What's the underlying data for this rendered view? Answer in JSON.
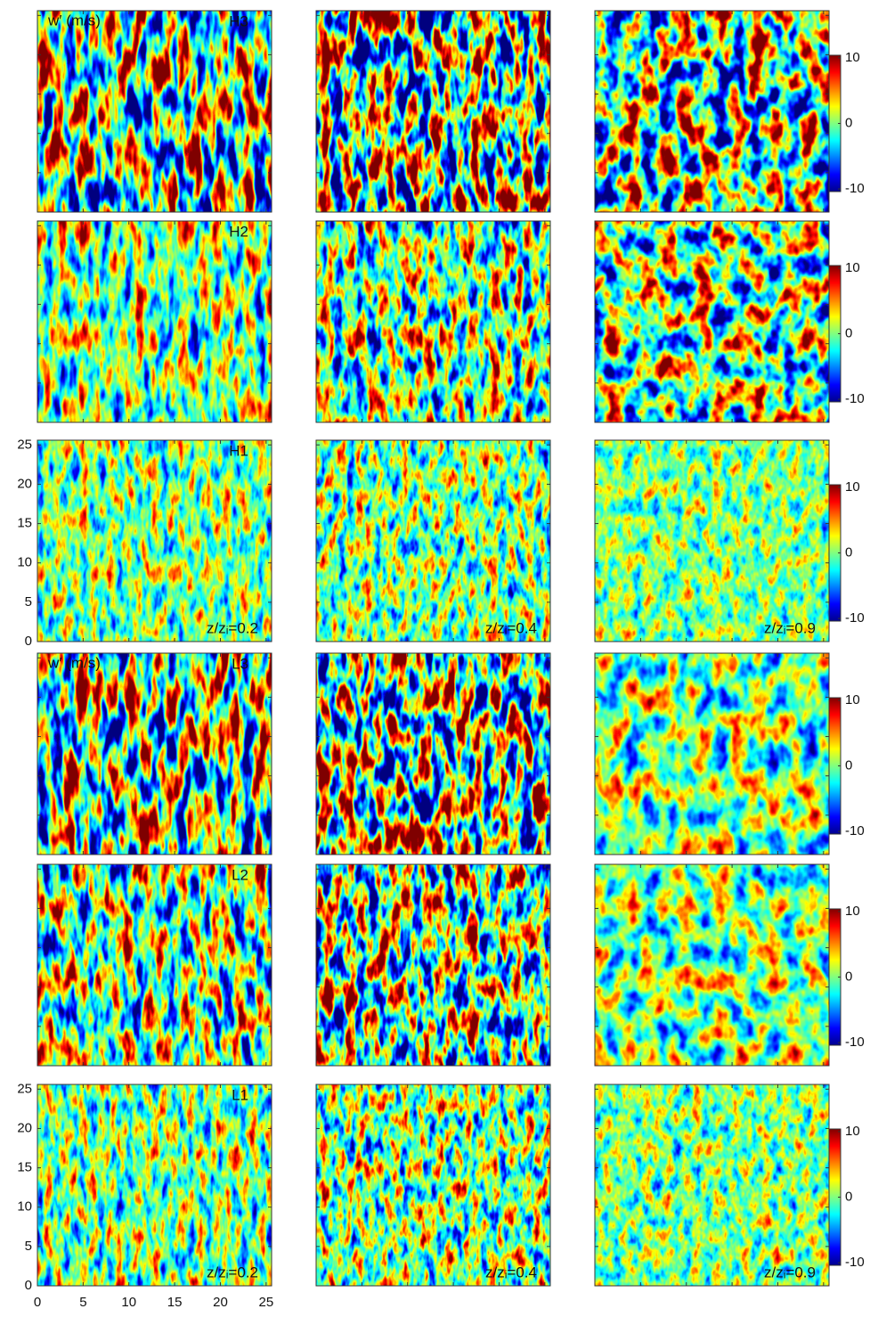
{
  "chart_data": [
    {
      "type": "field",
      "title": "w′ (m/s)",
      "annotation": "H3",
      "xlim": [
        0,
        25.6
      ],
      "ylim": [
        0,
        25.6
      ],
      "xticks": [
        0,
        5,
        10,
        15,
        20,
        25
      ],
      "yticks": [
        0,
        5,
        10,
        15,
        20,
        25
      ],
      "xtick_labels": false,
      "ytick_labels": false
    },
    {
      "type": "field",
      "xlim": [
        0,
        25.6
      ],
      "ylim": [
        0,
        25.6
      ],
      "xticks": [
        0,
        5,
        10,
        15,
        20,
        25
      ],
      "yticks": [
        0,
        5,
        10,
        15,
        20,
        25
      ],
      "xtick_labels": false,
      "ytick_labels": false
    },
    {
      "type": "field",
      "xlim": [
        0,
        25.6
      ],
      "ylim": [
        0,
        25.6
      ],
      "xticks": [
        0,
        5,
        10,
        15,
        20,
        25
      ],
      "yticks": [
        0,
        5,
        10,
        15,
        20,
        25
      ],
      "xtick_labels": false,
      "ytick_labels": false,
      "colorbar": {
        "lim": [
          -10.4,
          10.4
        ],
        "ticks": [
          -10,
          0,
          10
        ]
      }
    },
    {
      "type": "field",
      "annotation": "H2",
      "xlim": [
        0,
        25.6
      ],
      "ylim": [
        0,
        25.6
      ],
      "xticks": [
        0,
        5,
        10,
        15,
        20,
        25
      ],
      "yticks": [
        0,
        5,
        10,
        15,
        20,
        25
      ],
      "xtick_labels": false,
      "ytick_labels": false
    },
    {
      "type": "field",
      "xlim": [
        0,
        25.6
      ],
      "ylim": [
        0,
        25.6
      ],
      "xticks": [
        0,
        5,
        10,
        15,
        20,
        25
      ],
      "yticks": [
        0,
        5,
        10,
        15,
        20,
        25
      ],
      "xtick_labels": false,
      "ytick_labels": false
    },
    {
      "type": "field",
      "xlim": [
        0,
        25.6
      ],
      "ylim": [
        0,
        25.6
      ],
      "xticks": [
        0,
        5,
        10,
        15,
        20,
        25
      ],
      "yticks": [
        0,
        5,
        10,
        15,
        20,
        25
      ],
      "xtick_labels": false,
      "ytick_labels": false,
      "colorbar": {
        "lim": [
          -10.4,
          10.4
        ],
        "ticks": [
          -10,
          0,
          10
        ]
      }
    },
    {
      "type": "field",
      "annotation": "H1",
      "height": "z/zᵢ=0.2",
      "xlim": [
        0,
        25.6
      ],
      "ylim": [
        0,
        25.6
      ],
      "xticks": [
        0,
        5,
        10,
        15,
        20,
        25
      ],
      "yticks": [
        0,
        5,
        10,
        15,
        20,
        25
      ],
      "xtick_labels": false,
      "ytick_labels": true
    },
    {
      "type": "field",
      "height": "z/zᵢ=0.4",
      "xlim": [
        0,
        25.6
      ],
      "ylim": [
        0,
        25.6
      ],
      "xticks": [
        0,
        5,
        10,
        15,
        20,
        25
      ],
      "yticks": [
        0,
        5,
        10,
        15,
        20,
        25
      ],
      "xtick_labels": false,
      "ytick_labels": false
    },
    {
      "type": "field",
      "height": "z/zᵢ=0.9",
      "xlim": [
        0,
        25.6
      ],
      "ylim": [
        0,
        25.6
      ],
      "xticks": [
        0,
        5,
        10,
        15,
        20,
        25
      ],
      "yticks": [
        0,
        5,
        10,
        15,
        20,
        25
      ],
      "xtick_labels": false,
      "ytick_labels": false,
      "colorbar": {
        "lim": [
          -10.4,
          10.4
        ],
        "ticks": [
          -10,
          0,
          10
        ]
      }
    },
    {
      "type": "field",
      "title": "w′ (m/s)",
      "annotation": "L3",
      "xlim": [
        0,
        25.6
      ],
      "ylim": [
        0,
        25.6
      ],
      "xticks": [
        0,
        5,
        10,
        15,
        20,
        25
      ],
      "yticks": [
        0,
        5,
        10,
        15,
        20,
        25
      ],
      "xtick_labels": false,
      "ytick_labels": false
    },
    {
      "type": "field",
      "xlim": [
        0,
        25.6
      ],
      "ylim": [
        0,
        25.6
      ],
      "xticks": [
        0,
        5,
        10,
        15,
        20,
        25
      ],
      "yticks": [
        0,
        5,
        10,
        15,
        20,
        25
      ],
      "xtick_labels": false,
      "ytick_labels": false
    },
    {
      "type": "field",
      "xlim": [
        0,
        25.6
      ],
      "ylim": [
        0,
        25.6
      ],
      "xticks": [
        0,
        5,
        10,
        15,
        20,
        25
      ],
      "yticks": [
        0,
        5,
        10,
        15,
        20,
        25
      ],
      "xtick_labels": false,
      "ytick_labels": false,
      "colorbar": {
        "lim": [
          -10.4,
          10.4
        ],
        "ticks": [
          -10,
          0,
          10
        ]
      }
    },
    {
      "type": "field",
      "annotation": "L2",
      "xlim": [
        0,
        25.6
      ],
      "ylim": [
        0,
        25.6
      ],
      "xticks": [
        0,
        5,
        10,
        15,
        20,
        25
      ],
      "yticks": [
        0,
        5,
        10,
        15,
        20,
        25
      ],
      "xtick_labels": false,
      "ytick_labels": false
    },
    {
      "type": "field",
      "xlim": [
        0,
        25.6
      ],
      "ylim": [
        0,
        25.6
      ],
      "xticks": [
        0,
        5,
        10,
        15,
        20,
        25
      ],
      "yticks": [
        0,
        5,
        10,
        15,
        20,
        25
      ],
      "xtick_labels": false,
      "ytick_labels": false
    },
    {
      "type": "field",
      "xlim": [
        0,
        25.6
      ],
      "ylim": [
        0,
        25.6
      ],
      "xticks": [
        0,
        5,
        10,
        15,
        20,
        25
      ],
      "yticks": [
        0,
        5,
        10,
        15,
        20,
        25
      ],
      "xtick_labels": false,
      "ytick_labels": false,
      "colorbar": {
        "lim": [
          -10.4,
          10.4
        ],
        "ticks": [
          -10,
          0,
          10
        ]
      }
    },
    {
      "type": "field",
      "annotation": "L1",
      "height": "z/zᵢ=0.2",
      "xlim": [
        0,
        25.6
      ],
      "ylim": [
        0,
        25.6
      ],
      "xticks": [
        0,
        5,
        10,
        15,
        20,
        25
      ],
      "yticks": [
        0,
        5,
        10,
        15,
        20,
        25
      ],
      "xtick_labels": true,
      "ytick_labels": true
    },
    {
      "type": "field",
      "height": "z/zᵢ=0.4",
      "xlim": [
        0,
        25.6
      ],
      "ylim": [
        0,
        25.6
      ],
      "xticks": [
        0,
        5,
        10,
        15,
        20,
        25
      ],
      "yticks": [
        0,
        5,
        10,
        15,
        20,
        25
      ],
      "xtick_labels": false,
      "ytick_labels": false
    },
    {
      "type": "field",
      "height": "z/zᵢ=0.9",
      "xlim": [
        0,
        25.6
      ],
      "ylim": [
        0,
        25.6
      ],
      "xticks": [
        0,
        5,
        10,
        15,
        20,
        25
      ],
      "yticks": [
        0,
        5,
        10,
        15,
        20,
        25
      ],
      "xtick_labels": false,
      "ytick_labels": false,
      "colorbar": {
        "lim": [
          -10.4,
          10.4
        ],
        "ticks": [
          -10,
          0,
          10
        ]
      }
    }
  ]
}
